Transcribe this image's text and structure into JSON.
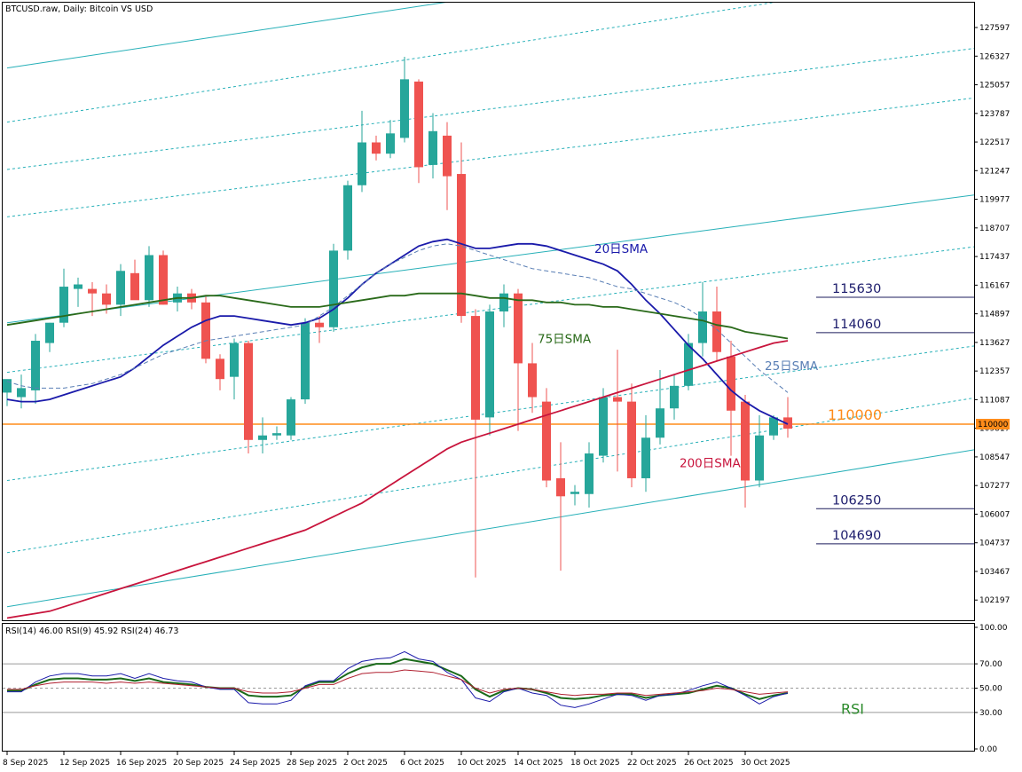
{
  "header": {
    "title": "BTCUSD.raw, Daily:  Bitcoin VS USD",
    "rsi_header": "RSI(14) 46.00 RSI(9) 45.92 RSI(24) 46.73"
  },
  "colors": {
    "bull": "#26a69a",
    "bear": "#ef5350",
    "sma20": "#1a1aaa",
    "sma25": "#5a7fb5",
    "sma75": "#2a6a1a",
    "sma200": "#c8143c",
    "channel": "#27b0b8",
    "hline_orange": "#ff8c1a",
    "hline_navy": "#1c1c5c",
    "rsi14": "#1a6a1a",
    "rsi9": "#1a1aaa",
    "rsi24": "#b02030"
  },
  "chart_data": {
    "type": "candlestick",
    "title": "BTCUSD.raw, Daily:  Bitcoin VS USD",
    "ylim": [
      101300,
      128700
    ],
    "y_ticks": [
      "127597",
      "126327",
      "125057",
      "123787",
      "122517",
      "121247",
      "119977",
      "118707",
      "117437",
      "116167",
      "114897",
      "113627",
      "112357",
      "111087",
      "109817",
      "108547",
      "107277",
      "106007",
      "104737",
      "103467",
      "102197"
    ],
    "x_ticks": [
      {
        "label": "8 Sep 2025",
        "index": 0
      },
      {
        "label": "12 Sep 2025",
        "index": 4
      },
      {
        "label": "16 Sep 2025",
        "index": 8
      },
      {
        "label": "20 Sep 2025",
        "index": 12
      },
      {
        "label": "24 Sep 2025",
        "index": 16
      },
      {
        "label": "28 Sep 2025",
        "index": 20
      },
      {
        "label": "2 Oct 2025",
        "index": 24
      },
      {
        "label": "6 Oct 2025",
        "index": 28
      },
      {
        "label": "10 Oct 2025",
        "index": 32
      },
      {
        "label": "14 Oct 2025",
        "index": 36
      },
      {
        "label": "18 Oct 2025",
        "index": 40
      },
      {
        "label": "22 Oct 2025",
        "index": 44
      },
      {
        "label": "26 Oct 2025",
        "index": 48
      },
      {
        "label": "30 Oct 2025",
        "index": 52
      }
    ],
    "candles": [
      {
        "o": 111400,
        "h": 111800,
        "l": 110800,
        "c": 112000
      },
      {
        "o": 111200,
        "h": 112200,
        "l": 110700,
        "c": 111600
      },
      {
        "o": 111500,
        "h": 114000,
        "l": 110900,
        "c": 113700
      },
      {
        "o": 113600,
        "h": 114500,
        "l": 113200,
        "c": 114500
      },
      {
        "o": 114500,
        "h": 116900,
        "l": 114300,
        "c": 116100
      },
      {
        "o": 116000,
        "h": 116500,
        "l": 115200,
        "c": 116200
      },
      {
        "o": 116000,
        "h": 116300,
        "l": 114800,
        "c": 115800
      },
      {
        "o": 115800,
        "h": 116200,
        "l": 114900,
        "c": 115300
      },
      {
        "o": 115300,
        "h": 117100,
        "l": 114800,
        "c": 116800
      },
      {
        "o": 116700,
        "h": 117300,
        "l": 115600,
        "c": 115500
      },
      {
        "o": 115500,
        "h": 117900,
        "l": 115200,
        "c": 117500
      },
      {
        "o": 117500,
        "h": 117700,
        "l": 115300,
        "c": 115300
      },
      {
        "o": 115400,
        "h": 116100,
        "l": 115000,
        "c": 115800
      },
      {
        "o": 115800,
        "h": 116000,
        "l": 115100,
        "c": 115400
      },
      {
        "o": 115400,
        "h": 115700,
        "l": 112700,
        "c": 112900
      },
      {
        "o": 112900,
        "h": 113100,
        "l": 111500,
        "c": 112000
      },
      {
        "o": 112100,
        "h": 113800,
        "l": 111100,
        "c": 113600
      },
      {
        "o": 113600,
        "h": 113700,
        "l": 108700,
        "c": 109300
      },
      {
        "o": 109300,
        "h": 110300,
        "l": 108700,
        "c": 109500
      },
      {
        "o": 109500,
        "h": 109900,
        "l": 109300,
        "c": 109600
      },
      {
        "o": 109500,
        "h": 111200,
        "l": 109300,
        "c": 111100
      },
      {
        "o": 111100,
        "h": 114700,
        "l": 110900,
        "c": 114500
      },
      {
        "o": 114500,
        "h": 114800,
        "l": 113600,
        "c": 114300
      },
      {
        "o": 114300,
        "h": 118000,
        "l": 114100,
        "c": 117700
      },
      {
        "o": 117700,
        "h": 120800,
        "l": 117300,
        "c": 120600
      },
      {
        "o": 120600,
        "h": 123900,
        "l": 120300,
        "c": 122500
      },
      {
        "o": 122500,
        "h": 122800,
        "l": 121700,
        "c": 122000
      },
      {
        "o": 122000,
        "h": 123500,
        "l": 121800,
        "c": 122900
      },
      {
        "o": 122700,
        "h": 126300,
        "l": 122500,
        "c": 125300
      },
      {
        "o": 125200,
        "h": 125300,
        "l": 120700,
        "c": 121400
      },
      {
        "o": 121500,
        "h": 123800,
        "l": 120900,
        "c": 123000
      },
      {
        "o": 122800,
        "h": 123400,
        "l": 119500,
        "c": 121000
      },
      {
        "o": 121100,
        "h": 122500,
        "l": 114500,
        "c": 114800
      },
      {
        "o": 114800,
        "h": 115100,
        "l": 103200,
        "c": 110200
      },
      {
        "o": 110300,
        "h": 115300,
        "l": 109500,
        "c": 115000
      },
      {
        "o": 115000,
        "h": 116200,
        "l": 114300,
        "c": 115800
      },
      {
        "o": 115800,
        "h": 116000,
        "l": 109700,
        "c": 112700
      },
      {
        "o": 112700,
        "h": 113600,
        "l": 110500,
        "c": 111200
      },
      {
        "o": 111000,
        "h": 111600,
        "l": 107200,
        "c": 107500
      },
      {
        "o": 107600,
        "h": 109200,
        "l": 103500,
        "c": 106800
      },
      {
        "o": 106900,
        "h": 107300,
        "l": 106400,
        "c": 107000
      },
      {
        "o": 106900,
        "h": 109200,
        "l": 106300,
        "c": 108700
      },
      {
        "o": 108600,
        "h": 111600,
        "l": 108300,
        "c": 111200
      },
      {
        "o": 111200,
        "h": 113300,
        "l": 107900,
        "c": 111000
      },
      {
        "o": 111000,
        "h": 111800,
        "l": 107200,
        "c": 107600
      },
      {
        "o": 107600,
        "h": 110400,
        "l": 107000,
        "c": 109400
      },
      {
        "o": 109400,
        "h": 112400,
        "l": 109100,
        "c": 110700
      },
      {
        "o": 110700,
        "h": 112200,
        "l": 110200,
        "c": 111700
      },
      {
        "o": 111700,
        "h": 114000,
        "l": 111500,
        "c": 113600
      },
      {
        "o": 113600,
        "h": 116300,
        "l": 113000,
        "c": 115000
      },
      {
        "o": 115000,
        "h": 116100,
        "l": 112800,
        "c": 113200
      },
      {
        "o": 113000,
        "h": 113700,
        "l": 108600,
        "c": 110600
      },
      {
        "o": 111000,
        "h": 111300,
        "l": 106300,
        "c": 107500
      },
      {
        "o": 107500,
        "h": 110400,
        "l": 107200,
        "c": 109500
      },
      {
        "o": 109500,
        "h": 110400,
        "l": 109300,
        "c": 110300
      },
      {
        "o": 110300,
        "h": 111200,
        "l": 109400,
        "c": 109800
      }
    ],
    "moving_averages": [
      {
        "name": "20日SMA",
        "color_key": "sma20",
        "dash": false,
        "values": [
          111100,
          111000,
          111000,
          111100,
          111300,
          111500,
          111700,
          111900,
          112100,
          112500,
          113000,
          113500,
          113900,
          114300,
          114600,
          114800,
          114800,
          114700,
          114600,
          114500,
          114400,
          114500,
          114700,
          115100,
          115600,
          116200,
          116700,
          117100,
          117500,
          117900,
          118100,
          118200,
          118000,
          117800,
          117800,
          117900,
          118000,
          118000,
          117900,
          117700,
          117500,
          117300,
          117100,
          116800,
          116200,
          115500,
          114900,
          114200,
          113500,
          112900,
          112200,
          111500,
          111000,
          110600,
          110300,
          110000
        ]
      },
      {
        "name": "25日SMA",
        "color_key": "sma25",
        "dash": true,
        "values": [
          111900,
          111700,
          111600,
          111600,
          111600,
          111700,
          111800,
          112000,
          112200,
          112500,
          112800,
          113100,
          113300,
          113500,
          113700,
          113800,
          113900,
          114000,
          114100,
          114200,
          114300,
          114400,
          114800,
          115200,
          115700,
          116200,
          116700,
          117100,
          117400,
          117700,
          117900,
          118000,
          117900,
          117700,
          117500,
          117300,
          117100,
          116900,
          116800,
          116700,
          116600,
          116500,
          116300,
          116100,
          116000,
          115800,
          115600,
          115400,
          115100,
          114700,
          114200,
          113600,
          113000,
          112400,
          111900,
          111400
        ]
      },
      {
        "name": "75日SMA",
        "color_key": "sma75",
        "dash": false,
        "values": [
          114400,
          114500,
          114600,
          114700,
          114800,
          114900,
          115000,
          115100,
          115200,
          115300,
          115400,
          115500,
          115600,
          115600,
          115700,
          115700,
          115600,
          115500,
          115400,
          115300,
          115200,
          115200,
          115200,
          115300,
          115400,
          115500,
          115600,
          115700,
          115700,
          115800,
          115800,
          115800,
          115800,
          115700,
          115600,
          115600,
          115500,
          115500,
          115400,
          115400,
          115300,
          115300,
          115200,
          115200,
          115100,
          115000,
          114900,
          114800,
          114700,
          114600,
          114400,
          114300,
          114100,
          114000,
          113900,
          113800
        ]
      },
      {
        "name": "200日SMA",
        "color_key": "sma200",
        "dash": false,
        "values": [
          101400,
          101500,
          101600,
          101700,
          101900,
          102100,
          102300,
          102500,
          102700,
          102900,
          103100,
          103300,
          103500,
          103700,
          103900,
          104100,
          104300,
          104500,
          104700,
          104900,
          105100,
          105300,
          105600,
          105900,
          106200,
          106500,
          106900,
          107300,
          107700,
          108100,
          108500,
          108900,
          109200,
          109400,
          109600,
          109800,
          110000,
          110200,
          110400,
          110600,
          110800,
          111000,
          111200,
          111400,
          111600,
          111800,
          112000,
          112200,
          112400,
          112600,
          112800,
          113000,
          113200,
          113400,
          113600,
          113700
        ]
      }
    ],
    "channel_lines": [
      {
        "style": "solid",
        "points": [
          {
            "i": 0,
            "y": 125800
          },
          {
            "i": 36,
            "y": 129200
          }
        ]
      },
      {
        "style": "dashed",
        "points": [
          {
            "i": 0,
            "y": 123400
          },
          {
            "i": 60,
            "y": 129300
          }
        ]
      },
      {
        "style": "dashed",
        "points": [
          {
            "i": 0,
            "y": 121300
          },
          {
            "i": 68.5,
            "y": 126700
          }
        ]
      },
      {
        "style": "dashed",
        "points": [
          {
            "i": 0,
            "y": 119200
          },
          {
            "i": 68.5,
            "y": 124500
          }
        ]
      },
      {
        "style": "solid",
        "points": [
          {
            "i": 0,
            "y": 114500
          },
          {
            "i": 68.5,
            "y": 120200
          }
        ]
      },
      {
        "style": "dashed",
        "points": [
          {
            "i": 0,
            "y": 112300
          },
          {
            "i": 68.5,
            "y": 117900
          }
        ]
      },
      {
        "style": "dashed",
        "points": [
          {
            "i": 0,
            "y": 107500
          },
          {
            "i": 68.5,
            "y": 113500
          }
        ]
      },
      {
        "style": "dashed",
        "points": [
          {
            "i": 0,
            "y": 104300
          },
          {
            "i": 68.5,
            "y": 111200
          }
        ]
      },
      {
        "style": "solid",
        "points": [
          {
            "i": 0,
            "y": 101900
          },
          {
            "i": 68.5,
            "y": 108900
          }
        ]
      }
    ],
    "horizontal_levels": [
      {
        "value": 110000,
        "label": "110000",
        "color_key": "hline_orange",
        "from_i": -1,
        "axis_tag": "110000"
      },
      {
        "value": 115630,
        "label": "115630",
        "color_key": "hline_navy",
        "from_i": 57
      },
      {
        "value": 114060,
        "label": "114060",
        "color_key": "hline_navy",
        "from_i": 57
      },
      {
        "value": 106250,
        "label": "106250",
        "color_key": "hline_navy",
        "from_i": 57
      },
      {
        "value": 104690,
        "label": "104690",
        "color_key": "hline_navy",
        "from_i": 57
      }
    ],
    "annotations": [
      {
        "text": "20日SMA",
        "i": 42,
        "y": 117600,
        "color_key": "sma20"
      },
      {
        "text": "75日SMA",
        "i": 38,
        "y": 113600,
        "color_key": "sma75"
      },
      {
        "text": "25日SMA",
        "i": 54,
        "y": 112400,
        "color_key": "sma25"
      },
      {
        "text": "200日SMA",
        "i": 48,
        "y": 108100,
        "color_key": "sma200"
      }
    ],
    "rsi": {
      "label": "RSI",
      "ylim": [
        0,
        100
      ],
      "y_ticks": [
        "100.00",
        "70.00",
        "50.00",
        "30.00",
        "0.00"
      ],
      "levels": [
        70,
        50,
        30
      ],
      "series": [
        {
          "name": "RSI(14)",
          "color_key": "rsi14",
          "values": [
            48,
            48,
            53,
            57,
            58,
            58,
            57,
            57,
            58,
            56,
            58,
            55,
            54,
            53,
            51,
            50,
            50,
            44,
            43,
            43,
            44,
            51,
            55,
            55,
            62,
            67,
            70,
            70,
            74,
            72,
            70,
            65,
            60,
            49,
            43,
            48,
            50,
            49,
            46,
            42,
            41,
            42,
            44,
            45,
            45,
            42,
            44,
            45,
            46,
            49,
            52,
            50,
            45,
            41,
            44,
            46
          ]
        },
        {
          "name": "RSI(9)",
          "color_key": "rsi9",
          "values": [
            47,
            47,
            55,
            60,
            62,
            62,
            60,
            60,
            62,
            58,
            62,
            58,
            56,
            55,
            51,
            49,
            49,
            38,
            37,
            37,
            40,
            52,
            56,
            56,
            66,
            72,
            74,
            75,
            80,
            74,
            72,
            63,
            57,
            42,
            39,
            47,
            50,
            46,
            44,
            36,
            34,
            37,
            41,
            45,
            44,
            40,
            44,
            45,
            48,
            52,
            55,
            50,
            44,
            37,
            43,
            46
          ]
        },
        {
          "name": "RSI(24)",
          "color_key": "rsi24",
          "values": [
            49,
            49,
            52,
            54,
            55,
            55,
            55,
            54,
            55,
            54,
            55,
            54,
            53,
            52,
            51,
            50,
            50,
            47,
            46,
            46,
            47,
            50,
            53,
            53,
            58,
            62,
            63,
            63,
            65,
            64,
            63,
            60,
            57,
            50,
            46,
            49,
            50,
            49,
            47,
            45,
            44,
            45,
            45,
            46,
            46,
            44,
            45,
            46,
            47,
            48,
            50,
            49,
            47,
            45,
            46,
            47
          ]
        }
      ]
    }
  }
}
